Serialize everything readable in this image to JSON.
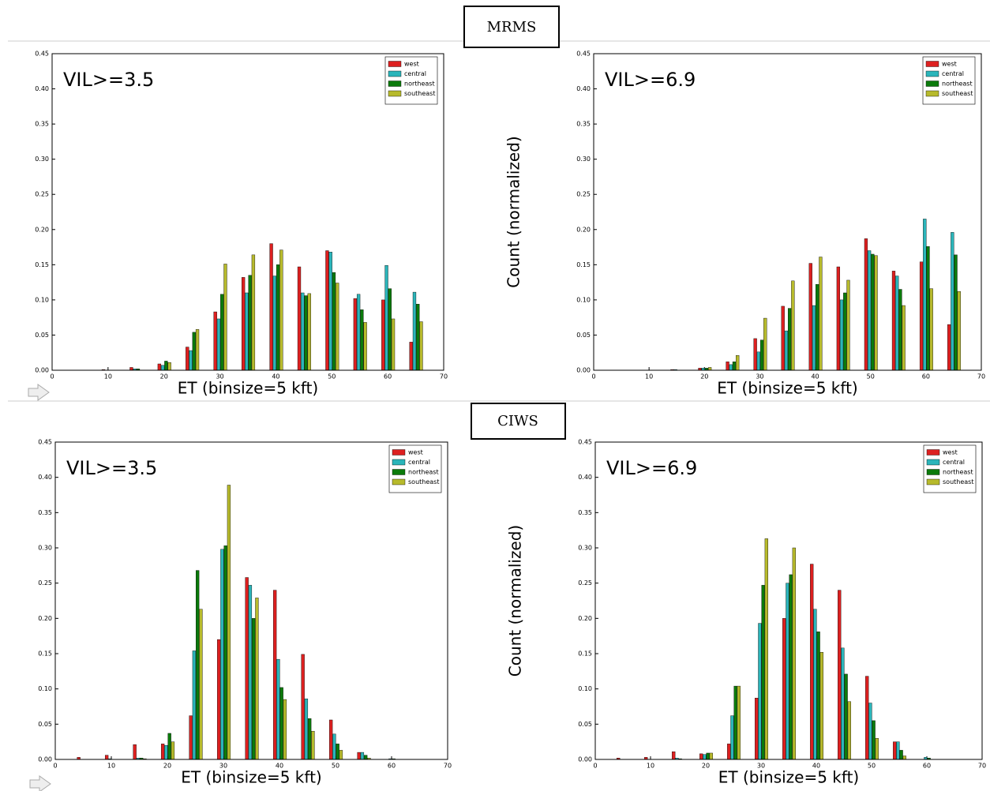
{
  "sections": [
    "MRMS",
    "CIWS"
  ],
  "chart_data": [
    {
      "type": "bar",
      "annotation": "VIL>=3.5",
      "xlabel": "ET (binsize=5 kft)",
      "x": [
        5,
        10,
        15,
        20,
        25,
        30,
        35,
        40,
        45,
        50,
        55,
        60,
        65
      ],
      "series": [
        {
          "name": "west",
          "color": "#dd2020",
          "values": [
            0,
            0.001,
            0.004,
            0.009,
            0.033,
            0.083,
            0.132,
            0.18,
            0.147,
            0.17,
            0.102,
            0.1,
            0.04
          ]
        },
        {
          "name": "central",
          "color": "#2bb5ba",
          "values": [
            0,
            0,
            0.002,
            0.007,
            0.028,
            0.073,
            0.11,
            0.134,
            0.11,
            0.168,
            0.108,
            0.149,
            0.111
          ]
        },
        {
          "name": "northeast",
          "color": "#0b7a0b",
          "values": [
            0,
            0,
            0.002,
            0.013,
            0.054,
            0.108,
            0.135,
            0.15,
            0.106,
            0.139,
            0.086,
            0.116,
            0.094
          ]
        },
        {
          "name": "southeast",
          "color": "#b7ba2c",
          "values": [
            0,
            0,
            0,
            0.011,
            0.058,
            0.151,
            0.164,
            0.171,
            0.109,
            0.124,
            0.068,
            0.073,
            0.069
          ]
        }
      ],
      "xlim": [
        0,
        70
      ],
      "ylim": [
        0,
        0.45
      ],
      "xticks": [
        0,
        10,
        20,
        30,
        40,
        50,
        60,
        70
      ],
      "yticks": [
        {
          "value": 0,
          "label": "0.00"
        },
        {
          "value": 0.05,
          "label": "0.05"
        },
        {
          "value": 0.1,
          "label": "0.10"
        },
        {
          "value": 0.15,
          "label": "0.15"
        },
        {
          "value": 0.2,
          "label": "0.20"
        },
        {
          "value": 0.25,
          "label": "0.25"
        },
        {
          "value": 0.3,
          "label": "0.30"
        },
        {
          "value": 0.35,
          "label": "0.35"
        },
        {
          "value": 0.4,
          "label": "0.40"
        },
        {
          "value": 0.45,
          "label": "0.45"
        }
      ],
      "legend": "upper right"
    },
    {
      "type": "bar",
      "annotation": "VIL>=6.9",
      "xlabel": "ET (binsize=5 kft)",
      "ylabel": "Count (normalized)",
      "x": [
        5,
        10,
        15,
        20,
        25,
        30,
        35,
        40,
        45,
        50,
        55,
        60,
        65
      ],
      "series": [
        {
          "name": "west",
          "color": "#dd2020",
          "values": [
            0,
            0,
            0.001,
            0.003,
            0.012,
            0.045,
            0.091,
            0.152,
            0.147,
            0.187,
            0.141,
            0.154,
            0.065
          ]
        },
        {
          "name": "central",
          "color": "#2bb5ba",
          "values": [
            0,
            0,
            0.001,
            0.003,
            0.008,
            0.026,
            0.056,
            0.092,
            0.1,
            0.17,
            0.134,
            0.215,
            0.196
          ]
        },
        {
          "name": "northeast",
          "color": "#0b7a0b",
          "values": [
            0,
            0,
            0,
            0.003,
            0.012,
            0.043,
            0.088,
            0.122,
            0.11,
            0.165,
            0.115,
            0.176,
            0.164
          ]
        },
        {
          "name": "southeast",
          "color": "#b7ba2c",
          "values": [
            0,
            0,
            0,
            0.004,
            0.021,
            0.074,
            0.127,
            0.161,
            0.128,
            0.163,
            0.092,
            0.116,
            0.112
          ]
        }
      ],
      "xlim": [
        0,
        70
      ],
      "ylim": [
        0,
        0.45
      ],
      "xticks": [
        0,
        10,
        20,
        30,
        40,
        50,
        60,
        70
      ],
      "yticks": [
        {
          "value": 0,
          "label": "0.00"
        },
        {
          "value": 0.05,
          "label": "0.05"
        },
        {
          "value": 0.1,
          "label": "0.10"
        },
        {
          "value": 0.15,
          "label": "0.15"
        },
        {
          "value": 0.2,
          "label": "0.20"
        },
        {
          "value": 0.25,
          "label": "0.25"
        },
        {
          "value": 0.3,
          "label": "0.30"
        },
        {
          "value": 0.35,
          "label": "0.35"
        },
        {
          "value": 0.4,
          "label": "0.40"
        },
        {
          "value": 0.45,
          "label": "0.45"
        }
      ],
      "legend": "upper right"
    },
    {
      "type": "bar",
      "annotation": "VIL>=3.5",
      "xlabel": "ET (binsize=5 kft)",
      "x": [
        5,
        10,
        15,
        20,
        25,
        30,
        35,
        40,
        45,
        50,
        55,
        60,
        65
      ],
      "series": [
        {
          "name": "west",
          "color": "#dd2020",
          "values": [
            0.003,
            0.006,
            0.021,
            0.022,
            0.062,
            0.17,
            0.258,
            0.24,
            0.149,
            0.056,
            0.01,
            0,
            0
          ]
        },
        {
          "name": "central",
          "color": "#2bb5ba",
          "values": [
            0,
            0.001,
            0.002,
            0.02,
            0.154,
            0.298,
            0.247,
            0.142,
            0.086,
            0.036,
            0.01,
            0.001,
            0
          ]
        },
        {
          "name": "northeast",
          "color": "#0b7a0b",
          "values": [
            0,
            0,
            0.002,
            0.037,
            0.268,
            0.303,
            0.2,
            0.102,
            0.058,
            0.022,
            0.006,
            0.001,
            0
          ]
        },
        {
          "name": "southeast",
          "color": "#b7ba2c",
          "values": [
            0,
            0,
            0.001,
            0.025,
            0.213,
            0.389,
            0.229,
            0.085,
            0.04,
            0.013,
            0.002,
            0,
            0
          ]
        }
      ],
      "xlim": [
        0,
        70
      ],
      "ylim": [
        0,
        0.45
      ],
      "xticks": [
        0,
        10,
        20,
        30,
        40,
        50,
        60,
        70
      ],
      "yticks": [
        {
          "value": 0,
          "label": "0.00"
        },
        {
          "value": 0.05,
          "label": "0.05"
        },
        {
          "value": 0.1,
          "label": "0.10"
        },
        {
          "value": 0.15,
          "label": "0.15"
        },
        {
          "value": 0.2,
          "label": "0.20"
        },
        {
          "value": 0.25,
          "label": "0.25"
        },
        {
          "value": 0.3,
          "label": "0.30"
        },
        {
          "value": 0.35,
          "label": "0.35"
        },
        {
          "value": 0.4,
          "label": "0.40"
        },
        {
          "value": 0.45,
          "label": "0.45"
        }
      ],
      "legend": "upper right"
    },
    {
      "type": "bar",
      "annotation": "VIL>=6.9",
      "xlabel": "ET (binsize=5 kft)",
      "ylabel": "Count (normalized)",
      "x": [
        5,
        10,
        15,
        20,
        25,
        30,
        35,
        40,
        45,
        50,
        55,
        60,
        65
      ],
      "series": [
        {
          "name": "west",
          "color": "#dd2020",
          "values": [
            0.002,
            0.003,
            0.011,
            0.008,
            0.022,
            0.087,
            0.2,
            0.277,
            0.24,
            0.118,
            0.025,
            0,
            0
          ]
        },
        {
          "name": "central",
          "color": "#2bb5ba",
          "values": [
            0,
            0,
            0.002,
            0.007,
            0.062,
            0.193,
            0.25,
            0.213,
            0.158,
            0.08,
            0.025,
            0.003,
            0
          ]
        },
        {
          "name": "northeast",
          "color": "#0b7a0b",
          "values": [
            0,
            0,
            0.001,
            0.009,
            0.104,
            0.247,
            0.262,
            0.181,
            0.121,
            0.055,
            0.013,
            0.002,
            0
          ]
        },
        {
          "name": "southeast",
          "color": "#b7ba2c",
          "values": [
            0,
            0,
            0,
            0.009,
            0.104,
            0.313,
            0.3,
            0.152,
            0.082,
            0.03,
            0.005,
            0,
            0
          ]
        }
      ],
      "xlim": [
        0,
        70
      ],
      "ylim": [
        0,
        0.45
      ],
      "xticks": [
        0,
        10,
        20,
        30,
        40,
        50,
        60,
        70
      ],
      "yticks": [
        {
          "value": 0,
          "label": "0.00"
        },
        {
          "value": 0.05,
          "label": "0.05"
        },
        {
          "value": 0.1,
          "label": "0.10"
        },
        {
          "value": 0.15,
          "label": "0.15"
        },
        {
          "value": 0.2,
          "label": "0.20"
        },
        {
          "value": 0.25,
          "label": "0.25"
        },
        {
          "value": 0.3,
          "label": "0.30"
        },
        {
          "value": 0.35,
          "label": "0.35"
        },
        {
          "value": 0.4,
          "label": "0.40"
        },
        {
          "value": 0.45,
          "label": "0.45"
        }
      ],
      "legend": "upper right"
    }
  ]
}
